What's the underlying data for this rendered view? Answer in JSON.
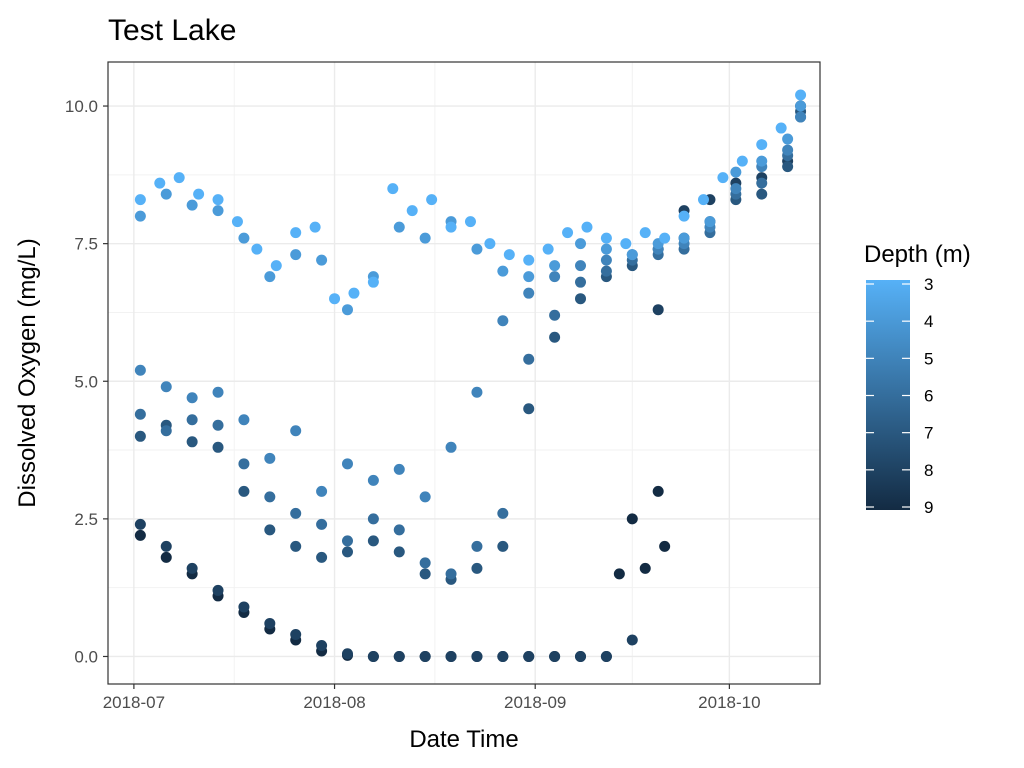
{
  "chart_data": {
    "type": "scatter",
    "title": "Test Lake",
    "xlabel": "Date Time",
    "ylabel": "Dissolved Oxygen (mg/L)",
    "x_axis": {
      "type": "date",
      "range": [
        "2018-06-27",
        "2018-10-15"
      ],
      "ticks": [
        "2018-07-01",
        "2018-08-01",
        "2018-09-01",
        "2018-10-01"
      ],
      "tick_labels": [
        "2018-07",
        "2018-08",
        "2018-09",
        "2018-10"
      ]
    },
    "y_axis": {
      "range": [
        -0.5,
        10.8
      ],
      "ticks": [
        0,
        2.5,
        5,
        7.5,
        10
      ],
      "tick_labels": [
        "0.0",
        "2.5",
        "5.0",
        "7.5",
        "10.0"
      ]
    },
    "grid": true,
    "legend": {
      "title": "Depth (m)",
      "type": "colorbar",
      "placement": "right",
      "range": [
        3,
        9
      ],
      "tick_labels": [
        "3",
        "4",
        "5",
        "6",
        "7",
        "8",
        "9"
      ],
      "color_low_depth": "#56B1F7",
      "color_high_depth": "#132B43"
    },
    "series": [
      {
        "depth": 3,
        "x": [
          "2018-07-02",
          "2018-07-05",
          "2018-07-08",
          "2018-07-11",
          "2018-07-14",
          "2018-07-17",
          "2018-07-20",
          "2018-07-23",
          "2018-07-26",
          "2018-07-29",
          "2018-08-01",
          "2018-08-04",
          "2018-08-07",
          "2018-08-10",
          "2018-08-13",
          "2018-08-16",
          "2018-08-19",
          "2018-08-22",
          "2018-08-25",
          "2018-08-28",
          "2018-08-31",
          "2018-09-03",
          "2018-09-06",
          "2018-09-09",
          "2018-09-12",
          "2018-09-15",
          "2018-09-18",
          "2018-09-21",
          "2018-09-24",
          "2018-09-27",
          "2018-09-30",
          "2018-10-03",
          "2018-10-06",
          "2018-10-09",
          "2018-10-12"
        ],
        "y": [
          8.3,
          8.6,
          8.7,
          8.4,
          8.3,
          7.9,
          7.4,
          7.1,
          7.7,
          7.8,
          6.5,
          6.6,
          6.8,
          8.5,
          8.1,
          8.3,
          7.8,
          7.9,
          7.5,
          7.3,
          7.2,
          7.4,
          7.7,
          7.8,
          7.6,
          7.5,
          7.7,
          7.6,
          8.0,
          8.3,
          8.7,
          9.0,
          9.3,
          9.6,
          10.2
        ]
      },
      {
        "depth": 4,
        "x": [
          "2018-07-02",
          "2018-07-06",
          "2018-07-10",
          "2018-07-14",
          "2018-07-18",
          "2018-07-22",
          "2018-07-26",
          "2018-07-30",
          "2018-08-03",
          "2018-08-07",
          "2018-08-11",
          "2018-08-15",
          "2018-08-19",
          "2018-08-23",
          "2018-08-27",
          "2018-08-31",
          "2018-09-04",
          "2018-09-08",
          "2018-09-12",
          "2018-09-16",
          "2018-09-20",
          "2018-09-24",
          "2018-09-28",
          "2018-10-02",
          "2018-10-06",
          "2018-10-10",
          "2018-10-12"
        ],
        "y": [
          8.0,
          8.4,
          8.2,
          8.1,
          7.6,
          6.9,
          7.3,
          7.2,
          6.3,
          6.9,
          7.8,
          7.6,
          7.9,
          7.4,
          7.0,
          6.9,
          7.1,
          7.5,
          7.4,
          7.3,
          7.5,
          7.6,
          7.9,
          8.8,
          9.0,
          9.4,
          10.0
        ]
      },
      {
        "depth": 5,
        "x": [
          "2018-07-02",
          "2018-07-06",
          "2018-07-10",
          "2018-07-14",
          "2018-07-18",
          "2018-07-22",
          "2018-07-26",
          "2018-07-30",
          "2018-08-03",
          "2018-08-07",
          "2018-08-11",
          "2018-08-15",
          "2018-08-19",
          "2018-08-23",
          "2018-08-27",
          "2018-08-31",
          "2018-09-04",
          "2018-09-08",
          "2018-09-12",
          "2018-09-16",
          "2018-09-20",
          "2018-09-24",
          "2018-09-28",
          "2018-10-02",
          "2018-10-06",
          "2018-10-10",
          "2018-10-12"
        ],
        "y": [
          5.2,
          4.9,
          4.7,
          4.8,
          4.3,
          3.6,
          4.1,
          3.0,
          3.5,
          3.2,
          3.4,
          2.9,
          3.8,
          4.8,
          6.1,
          6.6,
          6.9,
          7.1,
          7.2,
          7.3,
          7.4,
          7.5,
          7.8,
          8.5,
          8.9,
          9.2,
          9.8
        ]
      },
      {
        "depth": 6,
        "x": [
          "2018-07-02",
          "2018-07-06",
          "2018-07-10",
          "2018-07-14",
          "2018-07-18",
          "2018-07-22",
          "2018-07-26",
          "2018-07-30",
          "2018-08-03",
          "2018-08-07",
          "2018-08-11",
          "2018-08-15",
          "2018-08-19",
          "2018-08-23",
          "2018-08-27",
          "2018-08-31",
          "2018-09-04",
          "2018-09-08",
          "2018-09-12",
          "2018-09-16",
          "2018-09-20",
          "2018-09-24",
          "2018-09-28",
          "2018-10-02",
          "2018-10-06",
          "2018-10-10",
          "2018-10-12"
        ],
        "y": [
          4.4,
          4.1,
          4.3,
          4.2,
          3.5,
          2.9,
          2.6,
          2.4,
          2.1,
          2.5,
          2.3,
          1.7,
          1.5,
          2.0,
          2.6,
          5.4,
          6.2,
          6.8,
          7.0,
          7.2,
          7.3,
          7.4,
          7.7,
          8.4,
          8.6,
          9.1,
          9.8
        ]
      },
      {
        "depth": 7,
        "x": [
          "2018-07-02",
          "2018-07-06",
          "2018-07-10",
          "2018-07-14",
          "2018-07-18",
          "2018-07-22",
          "2018-07-26",
          "2018-07-30",
          "2018-08-03",
          "2018-08-07",
          "2018-08-11",
          "2018-08-15",
          "2018-08-19",
          "2018-08-23",
          "2018-08-27",
          "2018-08-31",
          "2018-09-04",
          "2018-09-08",
          "2018-09-12",
          "2018-09-16",
          "2018-09-20",
          "2018-09-24",
          "2018-09-28",
          "2018-10-02",
          "2018-10-06",
          "2018-10-10",
          "2018-10-12"
        ],
        "y": [
          4.0,
          4.2,
          3.9,
          3.8,
          3.0,
          2.3,
          2.0,
          1.8,
          1.9,
          2.1,
          1.9,
          1.5,
          1.4,
          1.6,
          2.0,
          4.5,
          5.8,
          6.5,
          6.9,
          7.1,
          7.4,
          7.6,
          7.9,
          8.3,
          8.4,
          8.9,
          9.9
        ]
      },
      {
        "depth": 8,
        "x": [
          "2018-07-02",
          "2018-07-06",
          "2018-07-10",
          "2018-07-14",
          "2018-07-18",
          "2018-07-22",
          "2018-07-26",
          "2018-07-30",
          "2018-08-03",
          "2018-08-07",
          "2018-08-11",
          "2018-08-15",
          "2018-08-19",
          "2018-08-23",
          "2018-08-27",
          "2018-08-31",
          "2018-09-04",
          "2018-09-08",
          "2018-09-12",
          "2018-09-16",
          "2018-09-20",
          "2018-09-24",
          "2018-09-28",
          "2018-10-02",
          "2018-10-06",
          "2018-10-10",
          "2018-10-12"
        ],
        "y": [
          2.4,
          2.0,
          1.6,
          1.2,
          0.9,
          0.6,
          0.4,
          0.2,
          0.05,
          0.0,
          0.0,
          0.0,
          0.0,
          0.0,
          0.0,
          0.0,
          0.0,
          0.0,
          0.0,
          0.3,
          6.3,
          8.1,
          8.3,
          8.6,
          8.7,
          9.0,
          10.0
        ]
      },
      {
        "depth": 9,
        "x": [
          "2018-07-02",
          "2018-07-06",
          "2018-07-10",
          "2018-07-14",
          "2018-07-18",
          "2018-07-22",
          "2018-07-26",
          "2018-07-30",
          "2018-08-03",
          "2018-08-07",
          "2018-08-11",
          "2018-08-15",
          "2018-08-19",
          "2018-08-23",
          "2018-08-27",
          "2018-08-31",
          "2018-09-04",
          "2018-09-08",
          "2018-09-12",
          "2018-09-14",
          "2018-09-16",
          "2018-09-18",
          "2018-09-20",
          "2018-09-21"
        ],
        "y": [
          2.2,
          1.8,
          1.5,
          1.1,
          0.8,
          0.5,
          0.3,
          0.1,
          0.02,
          0.0,
          0.0,
          0.0,
          0.0,
          0.0,
          0.0,
          0.0,
          0.0,
          0.0,
          0.0,
          1.5,
          2.5,
          1.6,
          3.0,
          2.0
        ]
      }
    ]
  }
}
